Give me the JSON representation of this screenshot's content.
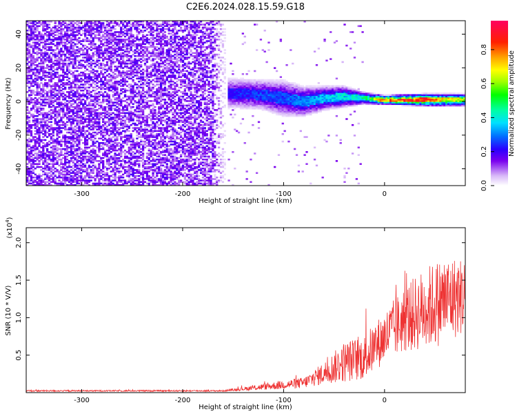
{
  "title": "C2E6.2024.028.15.59.G18",
  "chart_data": [
    {
      "type": "heatmap",
      "xlabel": "Height of straight line (km)",
      "ylabel": "Frequency (Hz)",
      "xlim": [
        -355,
        80
      ],
      "ylim": [
        -50,
        48
      ],
      "x_ticks": [
        -300,
        -200,
        -100,
        0
      ],
      "y_ticks": [
        -40,
        -20,
        0,
        20,
        40
      ],
      "colorbar": {
        "label": "Normalized spectral amplitude",
        "range": [
          0,
          0.97
        ],
        "ticks": [
          0.0,
          0.2,
          0.4,
          0.6,
          0.8
        ]
      },
      "description_points": {
        "noise_region_x": [
          -355,
          -155
        ],
        "signal_band": [
          {
            "x": -150,
            "center": 5,
            "width": 10,
            "amp": 0.25
          },
          {
            "x": -120,
            "center": 4,
            "width": 10,
            "amp": 0.3
          },
          {
            "x": -100,
            "center": 2,
            "width": 12,
            "amp": 0.3
          },
          {
            "x": -80,
            "center": 0,
            "width": 10,
            "amp": 0.35
          },
          {
            "x": -60,
            "center": 2,
            "width": 8,
            "amp": 0.4
          },
          {
            "x": -40,
            "center": 3,
            "width": 7,
            "amp": 0.45
          },
          {
            "x": -20,
            "center": 2,
            "width": 4,
            "amp": 0.5
          },
          {
            "x": 0,
            "center": 1,
            "width": 3,
            "amp": 0.95
          },
          {
            "x": 40,
            "center": 1,
            "width": 4,
            "amp": 0.95
          },
          {
            "x": 80,
            "center": 1,
            "width": 4,
            "amp": 0.7
          }
        ]
      },
      "grid": false
    },
    {
      "type": "line",
      "xlabel": "Height of straight line (km)",
      "ylabel": "SNR (10 * V/V)",
      "y_multiplier": "(x10^4)",
      "xlim": [
        -355,
        80
      ],
      "ylim": [
        0,
        2.2
      ],
      "x_ticks": [
        -300,
        -200,
        -100,
        0
      ],
      "y_ticks": [
        0.5,
        1.0,
        1.5,
        2.0
      ],
      "series": [
        {
          "color": "#ee3333",
          "envelope": [
            {
              "x": -355,
              "base": 0.02,
              "amp": 0.02
            },
            {
              "x": -160,
              "base": 0.02,
              "amp": 0.02
            },
            {
              "x": -140,
              "base": 0.04,
              "amp": 0.05
            },
            {
              "x": -100,
              "base": 0.08,
              "amp": 0.12
            },
            {
              "x": -80,
              "base": 0.1,
              "amp": 0.15
            },
            {
              "x": -60,
              "base": 0.2,
              "amp": 0.3
            },
            {
              "x": -40,
              "base": 0.3,
              "amp": 0.55
            },
            {
              "x": -20,
              "base": 0.35,
              "amp": 0.6
            },
            {
              "x": 0,
              "base": 0.6,
              "amp": 0.7
            },
            {
              "x": 20,
              "base": 0.8,
              "amp": 0.9
            },
            {
              "x": 40,
              "base": 0.9,
              "amp": 1.1
            },
            {
              "x": 60,
              "base": 1.0,
              "amp": 1.2
            },
            {
              "x": 80,
              "base": 1.1,
              "amp": 1.0
            }
          ]
        }
      ],
      "grid": false
    }
  ],
  "labels": {
    "top_xlabel": "Height of straight line (km)",
    "top_ylabel": "Frequency (Hz)",
    "bottom_xlabel": "Height of straight line (km)",
    "bottom_ylabel": "SNR (10 * V/V)",
    "multiplier_base": "(x10",
    "multiplier_exp": "4",
    "multiplier_close": ")",
    "colorbar_label": "Normalized spectral amplitude"
  }
}
